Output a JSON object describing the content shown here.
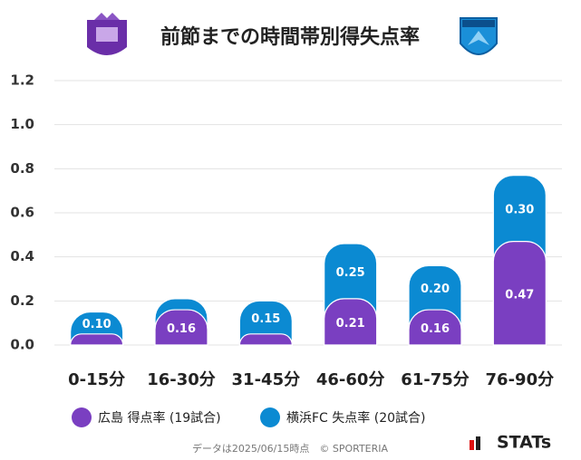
{
  "chart_data": {
    "type": "stacked-bar",
    "title": "前節までの時間帯別得失点率",
    "categories": [
      "0-15分",
      "16-30分",
      "31-45分",
      "46-60分",
      "61-75分",
      "76-90分"
    ],
    "series": [
      {
        "name": "広島 得点率 (19試合)",
        "color": "#7a3fc1",
        "values": [
          0.05,
          0.16,
          0.05,
          0.21,
          0.16,
          0.47
        ],
        "value_labels": [
          null,
          "0.16",
          null,
          "0.21",
          "0.16",
          "0.47"
        ]
      },
      {
        "name": "横浜FC 失点率 (20試合)",
        "color": "#0b8ad2",
        "values": [
          0.1,
          0.05,
          0.15,
          0.25,
          0.2,
          0.3
        ],
        "value_labels": [
          "0.10",
          null,
          "0.15",
          "0.25",
          "0.20",
          "0.30"
        ]
      }
    ],
    "ylim": [
      0,
      1.2
    ],
    "yticks": [
      {
        "value": 0,
        "label": "0.0"
      },
      0.2,
      0.4,
      0.6,
      0.8,
      {
        "value": 1,
        "label": "1.0"
      },
      1.2
    ],
    "grid": true,
    "footnote": "データは2025/06/15時点　© SPORTERIA",
    "brand": "STATs"
  }
}
